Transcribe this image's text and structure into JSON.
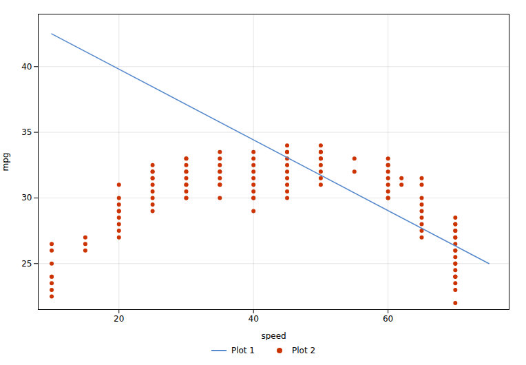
{
  "chart_data": {
    "type": "scatter",
    "xlabel": "speed",
    "ylabel": "mpg",
    "xlim": [
      8,
      78
    ],
    "ylim": [
      21.5,
      44
    ],
    "xticks": [
      20,
      40,
      60
    ],
    "yticks": [
      25,
      30,
      35,
      40
    ],
    "grid": true,
    "legend": "bottom",
    "series": [
      {
        "name": "Plot 1",
        "type": "line",
        "color": "#5588cc",
        "line_style": "solid",
        "x": [
          10,
          75
        ],
        "values": [
          42.5,
          25.0
        ]
      },
      {
        "name": "Plot 2",
        "type": "scatter",
        "color": "#cc3300",
        "marker": "circle",
        "x": [
          10,
          10,
          10,
          10,
          10,
          10,
          10,
          10,
          15,
          15,
          15,
          20,
          20,
          20,
          20,
          20,
          20,
          20,
          20,
          20,
          25,
          25,
          25,
          25,
          25,
          25,
          25,
          25,
          25,
          25,
          30,
          30,
          30,
          30,
          30,
          30,
          30,
          30,
          30,
          30,
          30,
          35,
          35,
          35,
          35,
          35,
          35,
          35,
          35,
          35,
          40,
          40,
          40,
          40,
          40,
          40,
          40,
          40,
          40,
          40,
          45,
          45,
          45,
          45,
          45,
          45,
          45,
          45,
          45,
          45,
          50,
          50,
          50,
          50,
          50,
          50,
          50,
          50,
          50,
          55,
          55,
          60,
          60,
          60,
          60,
          60,
          60,
          60,
          60,
          60,
          62,
          62,
          65,
          65,
          65,
          65,
          65,
          65,
          65,
          65,
          65,
          70,
          70,
          70,
          70,
          70,
          70,
          70,
          70,
          70,
          70,
          70,
          70,
          70,
          70,
          70,
          70,
          70,
          70,
          70,
          70
        ],
        "values": [
          24,
          23.5,
          23,
          22.5,
          25,
          26,
          26.5,
          24,
          26,
          26.5,
          27,
          27,
          27.5,
          28,
          28.5,
          29,
          29,
          29.5,
          30,
          31,
          29,
          29.5,
          30,
          30.5,
          31,
          31.5,
          31.5,
          32,
          32,
          32.5,
          30,
          30,
          30.5,
          31,
          31,
          31.5,
          32,
          32,
          32.5,
          33,
          33,
          30,
          31,
          31,
          31.5,
          32,
          32,
          32.5,
          33,
          33.5,
          29,
          30,
          30,
          30.5,
          31,
          31.5,
          32,
          32.5,
          33,
          33.5,
          30,
          30.5,
          31,
          31.5,
          32,
          32.5,
          33,
          33.5,
          33.5,
          34,
          31,
          31.5,
          32,
          32.5,
          33,
          33,
          33.5,
          33.5,
          34,
          32,
          33,
          30,
          30,
          30.5,
          31,
          31.5,
          32,
          32.5,
          32.5,
          33,
          31,
          31.5,
          27,
          27.5,
          28,
          28.5,
          29,
          29.5,
          30,
          31,
          31.5,
          23,
          23.5,
          24,
          24,
          24.5,
          25,
          25,
          25.5,
          26,
          26,
          26.5,
          27,
          27,
          27.5,
          27.5,
          28,
          28,
          28.5,
          24,
          22
        ]
      }
    ]
  }
}
